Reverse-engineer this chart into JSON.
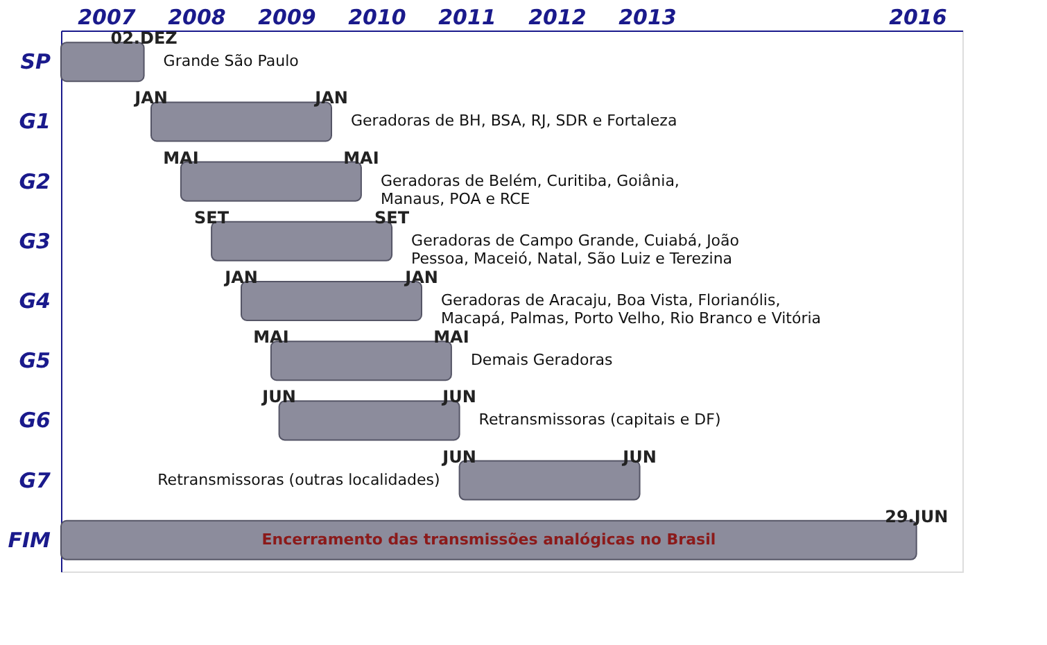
{
  "chart_data": {
    "type": "bar",
    "orientation": "horizontal",
    "categories": [
      "SP",
      "G1",
      "G2",
      "G3",
      "G4",
      "G5",
      "G6",
      "G7",
      "FIM"
    ],
    "series": [
      {
        "color": "#8c8c9c",
        "base": [
          2007.0,
          2008.0,
          2008.33,
          2008.67,
          2009.0,
          2009.33,
          2009.42,
          2011.42,
          2007.0
        ],
        "values": [
          0.92,
          2.0,
          2.0,
          2.0,
          2.0,
          2.0,
          2.0,
          2.0,
          9.49
        ]
      }
    ],
    "xlim": [
      2007,
      2017
    ],
    "xticks": [
      {
        "value": 2007.5,
        "label": "2007"
      },
      {
        "value": 2008.5,
        "label": "2008"
      },
      {
        "value": 2009.5,
        "label": "2009"
      },
      {
        "value": 2010.5,
        "label": "2010"
      },
      {
        "value": 2011.5,
        "label": "2011"
      },
      {
        "value": 2012.5,
        "label": "2012"
      },
      {
        "value": 2013.5,
        "label": "2013"
      },
      {
        "value": 2016.5,
        "label": "2016"
      }
    ],
    "grid": false,
    "annotations": [
      "Grande São Paulo",
      "Geradoras de BH, BSA, RJ, SDR e Fortaleza",
      "Geradoras de Belém, Curitiba, Goiânia,\nManaus, POA e RCE",
      "Geradoras de Campo Grande, Cuiabá, João\nPessoa, Maceió, Natal, São Luiz e Terezina",
      "Geradoras de Aracaju, Boa Vista, Florianólis,\nMacapá, Palmas, Porto Velho, Rio Branco e Vitória",
      "Demais Geradoras",
      "Retransmissoras (capitais e DF)",
      "Retransmissoras (outras localidades)",
      "Encerramento das transmissões analógicas no Brasil",
      {
        "text": "02.DEZ",
        "x": 2007.92,
        "y": "SP"
      },
      {
        "text": "JAN",
        "x": 2008.0,
        "y": "G1"
      },
      {
        "text": "JAN",
        "x": 2010.0,
        "y": "G1"
      },
      {
        "text": "MAI",
        "x": 2008.33,
        "y": "G2"
      },
      {
        "text": "MAI",
        "x": 2010.33,
        "y": "G2"
      },
      {
        "text": "SET",
        "x": 2008.67,
        "y": "G3"
      },
      {
        "text": "SET",
        "x": 2010.67,
        "y": "G3"
      },
      {
        "text": "JAN",
        "x": 2009.0,
        "y": "G4"
      },
      {
        "text": "JAN",
        "x": 2011.0,
        "y": "G4"
      },
      {
        "text": "MAI",
        "x": 2009.33,
        "y": "G5"
      },
      {
        "text": "MAI",
        "x": 2011.33,
        "y": "G5"
      },
      {
        "text": "JUN",
        "x": 2009.42,
        "y": "G6"
      },
      {
        "text": "JUN",
        "x": 2011.42,
        "y": "G6"
      },
      {
        "text": "JUN",
        "x": 2011.42,
        "y": "G7"
      },
      {
        "text": "JUN",
        "x": 2013.42,
        "y": "G7"
      },
      {
        "text": "29.JUN",
        "x": 2016.49,
        "y": "FIM"
      }
    ]
  }
}
